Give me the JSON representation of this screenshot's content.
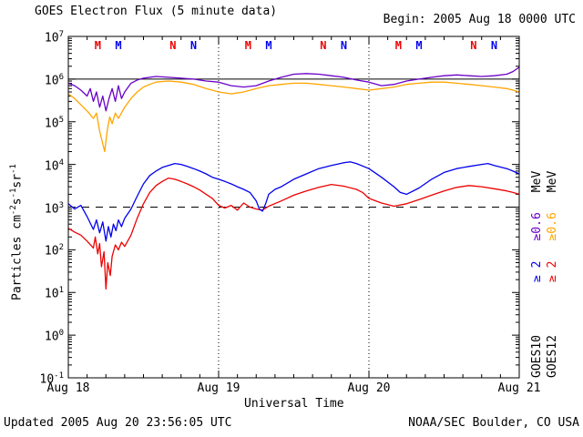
{
  "page": {
    "title": "GOES Electron Flux (5 minute data)",
    "begin": "Begin: 2005 Aug 18 0000 UTC",
    "updated": "Updated 2005 Aug 20 23:56:05 UTC",
    "credit": "NOAA/SEC Boulder, CO USA"
  },
  "palette": {
    "purple": "#6A00C8",
    "orange": "#FFA500",
    "blue": "#0000EE",
    "red": "#EE0000",
    "black": "#000000"
  },
  "ylabel_parts": {
    "p0": "Particles cm",
    "s0": "-2",
    "p1": "s",
    "s1": "-1",
    "p2": "sr",
    "s2": "-1"
  },
  "legend": {
    "col_goes10": {
      "ge2": "≥ 2",
      "ge06": "≥0.6",
      "unit": "MeV",
      "sat": "GOES10"
    },
    "col_goes12": {
      "ge2": "≥ 2",
      "ge06": "≥0.6",
      "unit": "MeV",
      "sat": "GOES12"
    }
  },
  "chart_data": {
    "type": "line",
    "title": "GOES Electron Flux (5 minute data)",
    "xlabel": "Universal Time",
    "x_unit": "hours since 2005 Aug 18 0000 UTC",
    "x_range": [
      0,
      72
    ],
    "y_scale": "log10",
    "y_range_exponents": [
      -1,
      7
    ],
    "y_tick_exponents": [
      7,
      6,
      5,
      4,
      3,
      2,
      1,
      0,
      -1
    ],
    "x_ticks": [
      {
        "hour": 0,
        "label": "Aug 18"
      },
      {
        "hour": 24,
        "label": "Aug 19"
      },
      {
        "hour": 48,
        "label": "Aug 20"
      },
      {
        "hour": 72,
        "label": "Aug 21"
      }
    ],
    "day_boundaries_hours": [
      24,
      48
    ],
    "solid_line_flux": 1000000.0,
    "alert_threshold_flux": 1000.0,
    "grid": "off",
    "legend_position": "right-rotated",
    "noon_midnight_markers": [
      {
        "hour": 4.7,
        "label": "M",
        "color": "red"
      },
      {
        "hour": 8,
        "label": "M",
        "color": "blue"
      },
      {
        "hour": 16.7,
        "label": "N",
        "color": "red"
      },
      {
        "hour": 20,
        "label": "N",
        "color": "blue"
      },
      {
        "hour": 28.7,
        "label": "M",
        "color": "red"
      },
      {
        "hour": 32,
        "label": "M",
        "color": "blue"
      },
      {
        "hour": 40.7,
        "label": "N",
        "color": "red"
      },
      {
        "hour": 44,
        "label": "N",
        "color": "blue"
      },
      {
        "hour": 52.7,
        "label": "M",
        "color": "red"
      },
      {
        "hour": 56,
        "label": "M",
        "color": "blue"
      },
      {
        "hour": 64.7,
        "label": "N",
        "color": "red"
      },
      {
        "hour": 68,
        "label": "N",
        "color": "blue"
      }
    ],
    "series": [
      {
        "name": "GOES12 >=0.6 MeV",
        "color_key": "orange",
        "points": [
          [
            0,
            450000.0
          ],
          [
            1,
            350000.0
          ],
          [
            2,
            250000.0
          ],
          [
            3,
            180000.0
          ],
          [
            4,
            120000.0
          ],
          [
            4.5,
            160000.0
          ],
          [
            5,
            60000.0
          ],
          [
            5.4,
            35000.0
          ],
          [
            5.8,
            20000.0
          ],
          [
            6.2,
            60000.0
          ],
          [
            6.6,
            130000.0
          ],
          [
            7,
            90000.0
          ],
          [
            7.5,
            160000.0
          ],
          [
            8,
            120000.0
          ],
          [
            9,
            220000.0
          ],
          [
            10,
            350000.0
          ],
          [
            11,
            500000.0
          ],
          [
            12,
            650000.0
          ],
          [
            13,
            750000.0
          ],
          [
            14,
            850000.0
          ],
          [
            16,
            900000.0
          ],
          [
            18,
            850000.0
          ],
          [
            20,
            750000.0
          ],
          [
            22,
            600000.0
          ],
          [
            24,
            500000.0
          ],
          [
            26,
            450000.0
          ],
          [
            28,
            500000.0
          ],
          [
            30,
            600000.0
          ],
          [
            32,
            700000.0
          ],
          [
            34,
            750000.0
          ],
          [
            36,
            800000.0
          ],
          [
            38,
            800000.0
          ],
          [
            40,
            750000.0
          ],
          [
            42,
            700000.0
          ],
          [
            44,
            650000.0
          ],
          [
            46,
            600000.0
          ],
          [
            48,
            550000.0
          ],
          [
            50,
            600000.0
          ],
          [
            52,
            650000.0
          ],
          [
            54,
            750000.0
          ],
          [
            56,
            800000.0
          ],
          [
            58,
            850000.0
          ],
          [
            60,
            850000.0
          ],
          [
            62,
            800000.0
          ],
          [
            64,
            750000.0
          ],
          [
            66,
            700000.0
          ],
          [
            68,
            650000.0
          ],
          [
            70,
            600000.0
          ],
          [
            71,
            550000.0
          ],
          [
            72,
            500000.0
          ]
        ]
      },
      {
        "name": "GOES10 >=0.6 MeV",
        "color_key": "purple",
        "points": [
          [
            0,
            800000.0
          ],
          [
            1,
            700000.0
          ],
          [
            2,
            550000.0
          ],
          [
            3,
            400000.0
          ],
          [
            3.5,
            600000.0
          ],
          [
            4,
            300000.0
          ],
          [
            4.5,
            500000.0
          ],
          [
            5,
            220000.0
          ],
          [
            5.5,
            400000.0
          ],
          [
            6,
            180000.0
          ],
          [
            6.5,
            350000.0
          ],
          [
            7,
            600000.0
          ],
          [
            7.5,
            300000.0
          ],
          [
            8,
            700000.0
          ],
          [
            8.5,
            350000.0
          ],
          [
            9,
            500000.0
          ],
          [
            10,
            800000.0
          ],
          [
            11,
            950000.0
          ],
          [
            12,
            1050000.0
          ],
          [
            13,
            1100000.0
          ],
          [
            14,
            1150000.0
          ],
          [
            16,
            1100000.0
          ],
          [
            18,
            1050000.0
          ],
          [
            20,
            1000000.0
          ],
          [
            22,
            900000.0
          ],
          [
            24,
            850000.0
          ],
          [
            26,
            700000.0
          ],
          [
            28,
            650000.0
          ],
          [
            30,
            700000.0
          ],
          [
            32,
            900000.0
          ],
          [
            34,
            1100000.0
          ],
          [
            36,
            1300000.0
          ],
          [
            38,
            1350000.0
          ],
          [
            40,
            1300000.0
          ],
          [
            42,
            1200000.0
          ],
          [
            44,
            1100000.0
          ],
          [
            46,
            950000.0
          ],
          [
            48,
            850000.0
          ],
          [
            50,
            700000.0
          ],
          [
            52,
            750000.0
          ],
          [
            54,
            900000.0
          ],
          [
            56,
            1000000.0
          ],
          [
            58,
            1100000.0
          ],
          [
            60,
            1200000.0
          ],
          [
            62,
            1250000.0
          ],
          [
            64,
            1200000.0
          ],
          [
            66,
            1150000.0
          ],
          [
            68,
            1200000.0
          ],
          [
            70,
            1300000.0
          ],
          [
            71,
            1500000.0
          ],
          [
            72,
            1900000.0
          ]
        ]
      },
      {
        "name": "GOES12 >=2 MeV",
        "color_key": "red",
        "points": [
          [
            0,
            320.0
          ],
          [
            1,
            260.0
          ],
          [
            2,
            220.0
          ],
          [
            3,
            160.0
          ],
          [
            4,
            110.0
          ],
          [
            4.3,
            200.0
          ],
          [
            4.7,
            80.0
          ],
          [
            5,
            140.0
          ],
          [
            5.3,
            40.0
          ],
          [
            5.7,
            90.0
          ],
          [
            6,
            12.0
          ],
          [
            6.3,
            50.0
          ],
          [
            6.7,
            25.0
          ],
          [
            7,
            70.0
          ],
          [
            7.5,
            130.0
          ],
          [
            8,
            100.0
          ],
          [
            8.5,
            150.0
          ],
          [
            9,
            120.0
          ],
          [
            10,
            220.0
          ],
          [
            11,
            550.0
          ],
          [
            12,
            1200.0
          ],
          [
            13,
            2200.0
          ],
          [
            14,
            3200.0
          ],
          [
            15,
            4000.0
          ],
          [
            16,
            4800.0
          ],
          [
            17,
            4500.0
          ],
          [
            18,
            4000.0
          ],
          [
            19,
            3500.0
          ],
          [
            20,
            3000.0
          ],
          [
            21,
            2500.0
          ],
          [
            22,
            2000.0
          ],
          [
            23,
            1600.0
          ],
          [
            24,
            1100.0
          ],
          [
            25,
            950.0
          ],
          [
            26,
            1100.0
          ],
          [
            27,
            850.0
          ],
          [
            28,
            1250.0
          ],
          [
            29,
            1000.0
          ],
          [
            30,
            900.0
          ],
          [
            31,
            850.0
          ],
          [
            32,
            1050.0
          ],
          [
            34,
            1400.0
          ],
          [
            36,
            1900.0
          ],
          [
            38,
            2400.0
          ],
          [
            40,
            2900.0
          ],
          [
            42,
            3400.0
          ],
          [
            44,
            3100.0
          ],
          [
            46,
            2600.0
          ],
          [
            47,
            2200.0
          ],
          [
            48,
            1600.0
          ],
          [
            50,
            1250.0
          ],
          [
            52,
            1050.0
          ],
          [
            54,
            1200.0
          ],
          [
            56,
            1500.0
          ],
          [
            58,
            1900.0
          ],
          [
            60,
            2400.0
          ],
          [
            62,
            2900.0
          ],
          [
            64,
            3200.0
          ],
          [
            66,
            3000.0
          ],
          [
            68,
            2700.0
          ],
          [
            70,
            2400.0
          ],
          [
            71,
            2200.0
          ],
          [
            72,
            2000.0
          ]
        ]
      },
      {
        "name": "GOES10 >=2 MeV",
        "color_key": "blue",
        "points": [
          [
            0,
            1200.0
          ],
          [
            1,
            900.0
          ],
          [
            2,
            1100.0
          ],
          [
            3,
            600.0
          ],
          [
            4,
            300.0
          ],
          [
            4.5,
            500.0
          ],
          [
            5,
            250.0
          ],
          [
            5.5,
            450.0
          ],
          [
            6,
            160.0
          ],
          [
            6.4,
            350.0
          ],
          [
            6.8,
            200.0
          ],
          [
            7.2,
            400.0
          ],
          [
            7.6,
            280.0
          ],
          [
            8,
            500.0
          ],
          [
            8.5,
            350.0
          ],
          [
            9,
            550.0
          ],
          [
            10,
            900.0
          ],
          [
            11,
            1800.0
          ],
          [
            12,
            3500.0
          ],
          [
            13,
            5500.0
          ],
          [
            14,
            7000.0
          ],
          [
            15,
            8500.0
          ],
          [
            16,
            9500.0
          ],
          [
            17,
            10500.0
          ],
          [
            18,
            10000.0
          ],
          [
            19,
            9000.0
          ],
          [
            20,
            8000.0
          ],
          [
            21,
            7000.0
          ],
          [
            22,
            6000.0
          ],
          [
            23,
            5000.0
          ],
          [
            24,
            4500.0
          ],
          [
            25,
            4000.0
          ],
          [
            26,
            3500.0
          ],
          [
            27,
            3000.0
          ],
          [
            28,
            2600.0
          ],
          [
            29,
            2200.0
          ],
          [
            30,
            1400.0
          ],
          [
            30.5,
            900.0
          ],
          [
            31,
            800.0
          ],
          [
            31.5,
            1200.0
          ],
          [
            32,
            2000.0
          ],
          [
            33,
            2600.0
          ],
          [
            34,
            3000.0
          ],
          [
            36,
            4500.0
          ],
          [
            38,
            6000.0
          ],
          [
            40,
            8000.0
          ],
          [
            42,
            9500.0
          ],
          [
            44,
            11000.0
          ],
          [
            45,
            11500.0
          ],
          [
            46,
            10500.0
          ],
          [
            48,
            8000.0
          ],
          [
            50,
            5000.0
          ],
          [
            52,
            3000.0
          ],
          [
            53,
            2200.0
          ],
          [
            54,
            2000.0
          ],
          [
            56,
            2800.0
          ],
          [
            58,
            4500.0
          ],
          [
            60,
            6500.0
          ],
          [
            62,
            8000.0
          ],
          [
            64,
            9000.0
          ],
          [
            66,
            10000.0
          ],
          [
            67,
            10500.0
          ],
          [
            68,
            9500.0
          ],
          [
            70,
            8000.0
          ],
          [
            71,
            7000.0
          ],
          [
            72,
            6000.0
          ]
        ]
      }
    ]
  }
}
